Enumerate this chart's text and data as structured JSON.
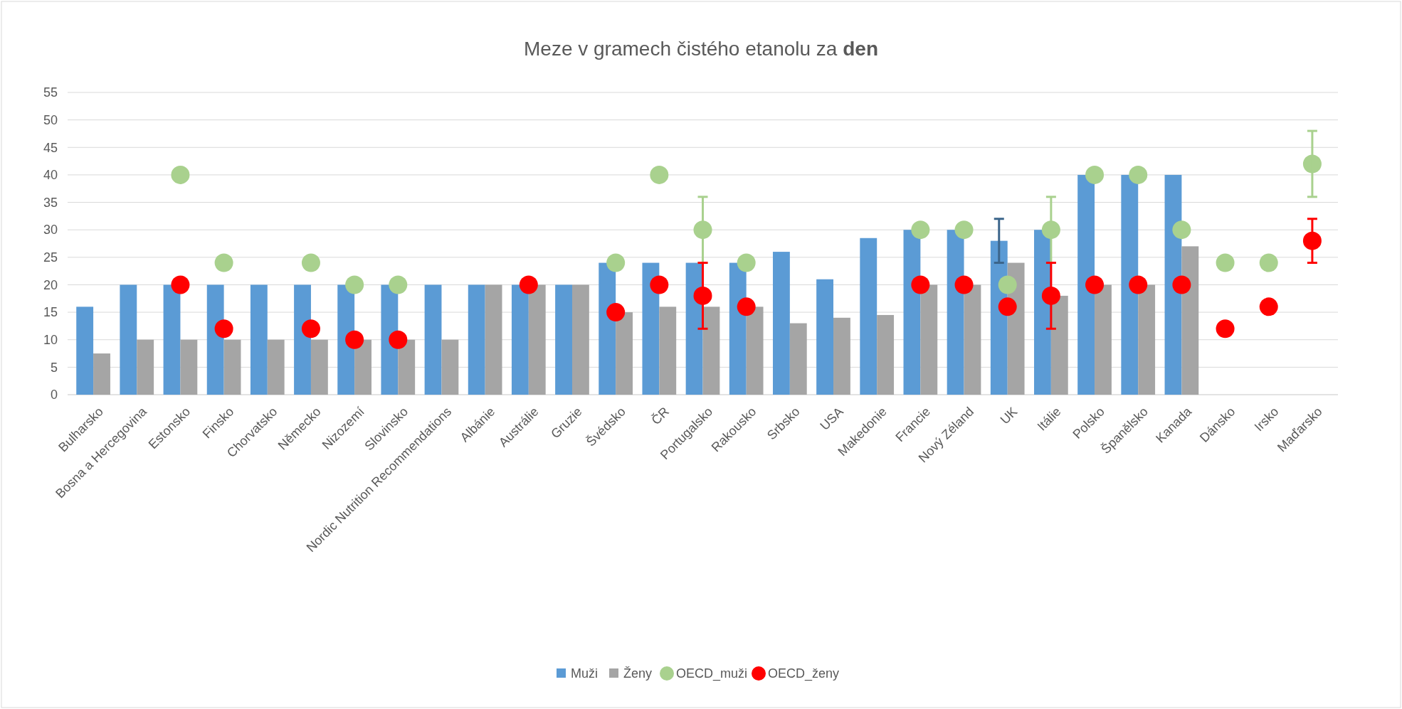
{
  "chart_data": {
    "type": "bar",
    "title": "Meze v gramech čistého etanolu za den",
    "categories": [
      "Bulharsko",
      "Bosna a Hercegovina",
      "Estonsko",
      "Finsko",
      "Chorvatsko",
      "Německo",
      "Nizozemí",
      "Slovinsko",
      "Nordic Nutrition Recommendations",
      "Albánie",
      "Austrálie",
      "Gruzie",
      "Švédsko",
      "ČR",
      "Portugalsko",
      "Rakousko",
      "Srbsko",
      "USA",
      "Makedonie",
      "Francie",
      "Nový Zéland",
      "UK",
      "Itálie",
      "Polsko",
      "Španělsko",
      "Kanada",
      "Dánsko",
      "Irsko",
      "Maďarsko"
    ],
    "series": [
      {
        "name": "Muži",
        "type": "bar",
        "color": "#5b9bd5",
        "values": [
          16,
          20,
          20,
          20,
          20,
          20,
          20,
          20,
          20,
          20,
          20,
          20,
          24,
          24,
          24,
          24,
          26,
          21,
          28.5,
          30,
          30,
          28,
          30,
          40,
          40,
          40,
          null,
          null,
          null
        ],
        "errors": [
          null,
          null,
          null,
          null,
          null,
          null,
          null,
          null,
          null,
          null,
          null,
          null,
          null,
          null,
          null,
          null,
          null,
          null,
          null,
          null,
          null,
          [
            24,
            32
          ],
          null,
          null,
          null,
          null,
          null,
          null,
          null
        ]
      },
      {
        "name": "Ženy",
        "type": "bar",
        "color": "#a5a5a5",
        "values": [
          7.5,
          10,
          10,
          10,
          10,
          10,
          10,
          10,
          10,
          20,
          20,
          20,
          15,
          16,
          16,
          16,
          13,
          14,
          14.5,
          20,
          20,
          24,
          18,
          20,
          20,
          27,
          null,
          null,
          null
        ]
      },
      {
        "name": "OECD_muži",
        "type": "scatter",
        "color": "#a9d18e",
        "values": [
          null,
          null,
          40,
          24,
          null,
          24,
          20,
          20,
          null,
          null,
          null,
          null,
          24,
          40,
          30,
          24,
          null,
          null,
          null,
          30,
          30,
          20,
          30,
          40,
          40,
          30,
          24,
          24,
          42
        ],
        "errors": [
          null,
          null,
          null,
          null,
          null,
          null,
          null,
          null,
          null,
          null,
          null,
          null,
          null,
          null,
          [
            24,
            36
          ],
          null,
          null,
          null,
          null,
          null,
          null,
          null,
          [
            24,
            36
          ],
          null,
          null,
          null,
          null,
          null,
          [
            36,
            48
          ]
        ]
      },
      {
        "name": "OECD_ženy",
        "type": "scatter",
        "color": "#ff0000",
        "values": [
          null,
          null,
          20,
          12,
          null,
          12,
          10,
          10,
          null,
          null,
          20,
          null,
          15,
          20,
          18,
          16,
          null,
          null,
          null,
          20,
          20,
          16,
          18,
          20,
          20,
          20,
          12,
          16,
          28
        ],
        "errors": [
          null,
          null,
          null,
          null,
          null,
          null,
          null,
          null,
          null,
          null,
          null,
          null,
          null,
          null,
          [
            12,
            24
          ],
          null,
          null,
          null,
          null,
          null,
          null,
          null,
          [
            12,
            24
          ],
          null,
          null,
          null,
          null,
          null,
          [
            24,
            32
          ]
        ]
      }
    ],
    "ylim": [
      0,
      55
    ],
    "yticks": [
      0,
      5,
      10,
      15,
      20,
      25,
      30,
      35,
      40,
      45,
      50,
      55
    ],
    "grid": "y",
    "legend": "bottom",
    "marker": "circle"
  }
}
